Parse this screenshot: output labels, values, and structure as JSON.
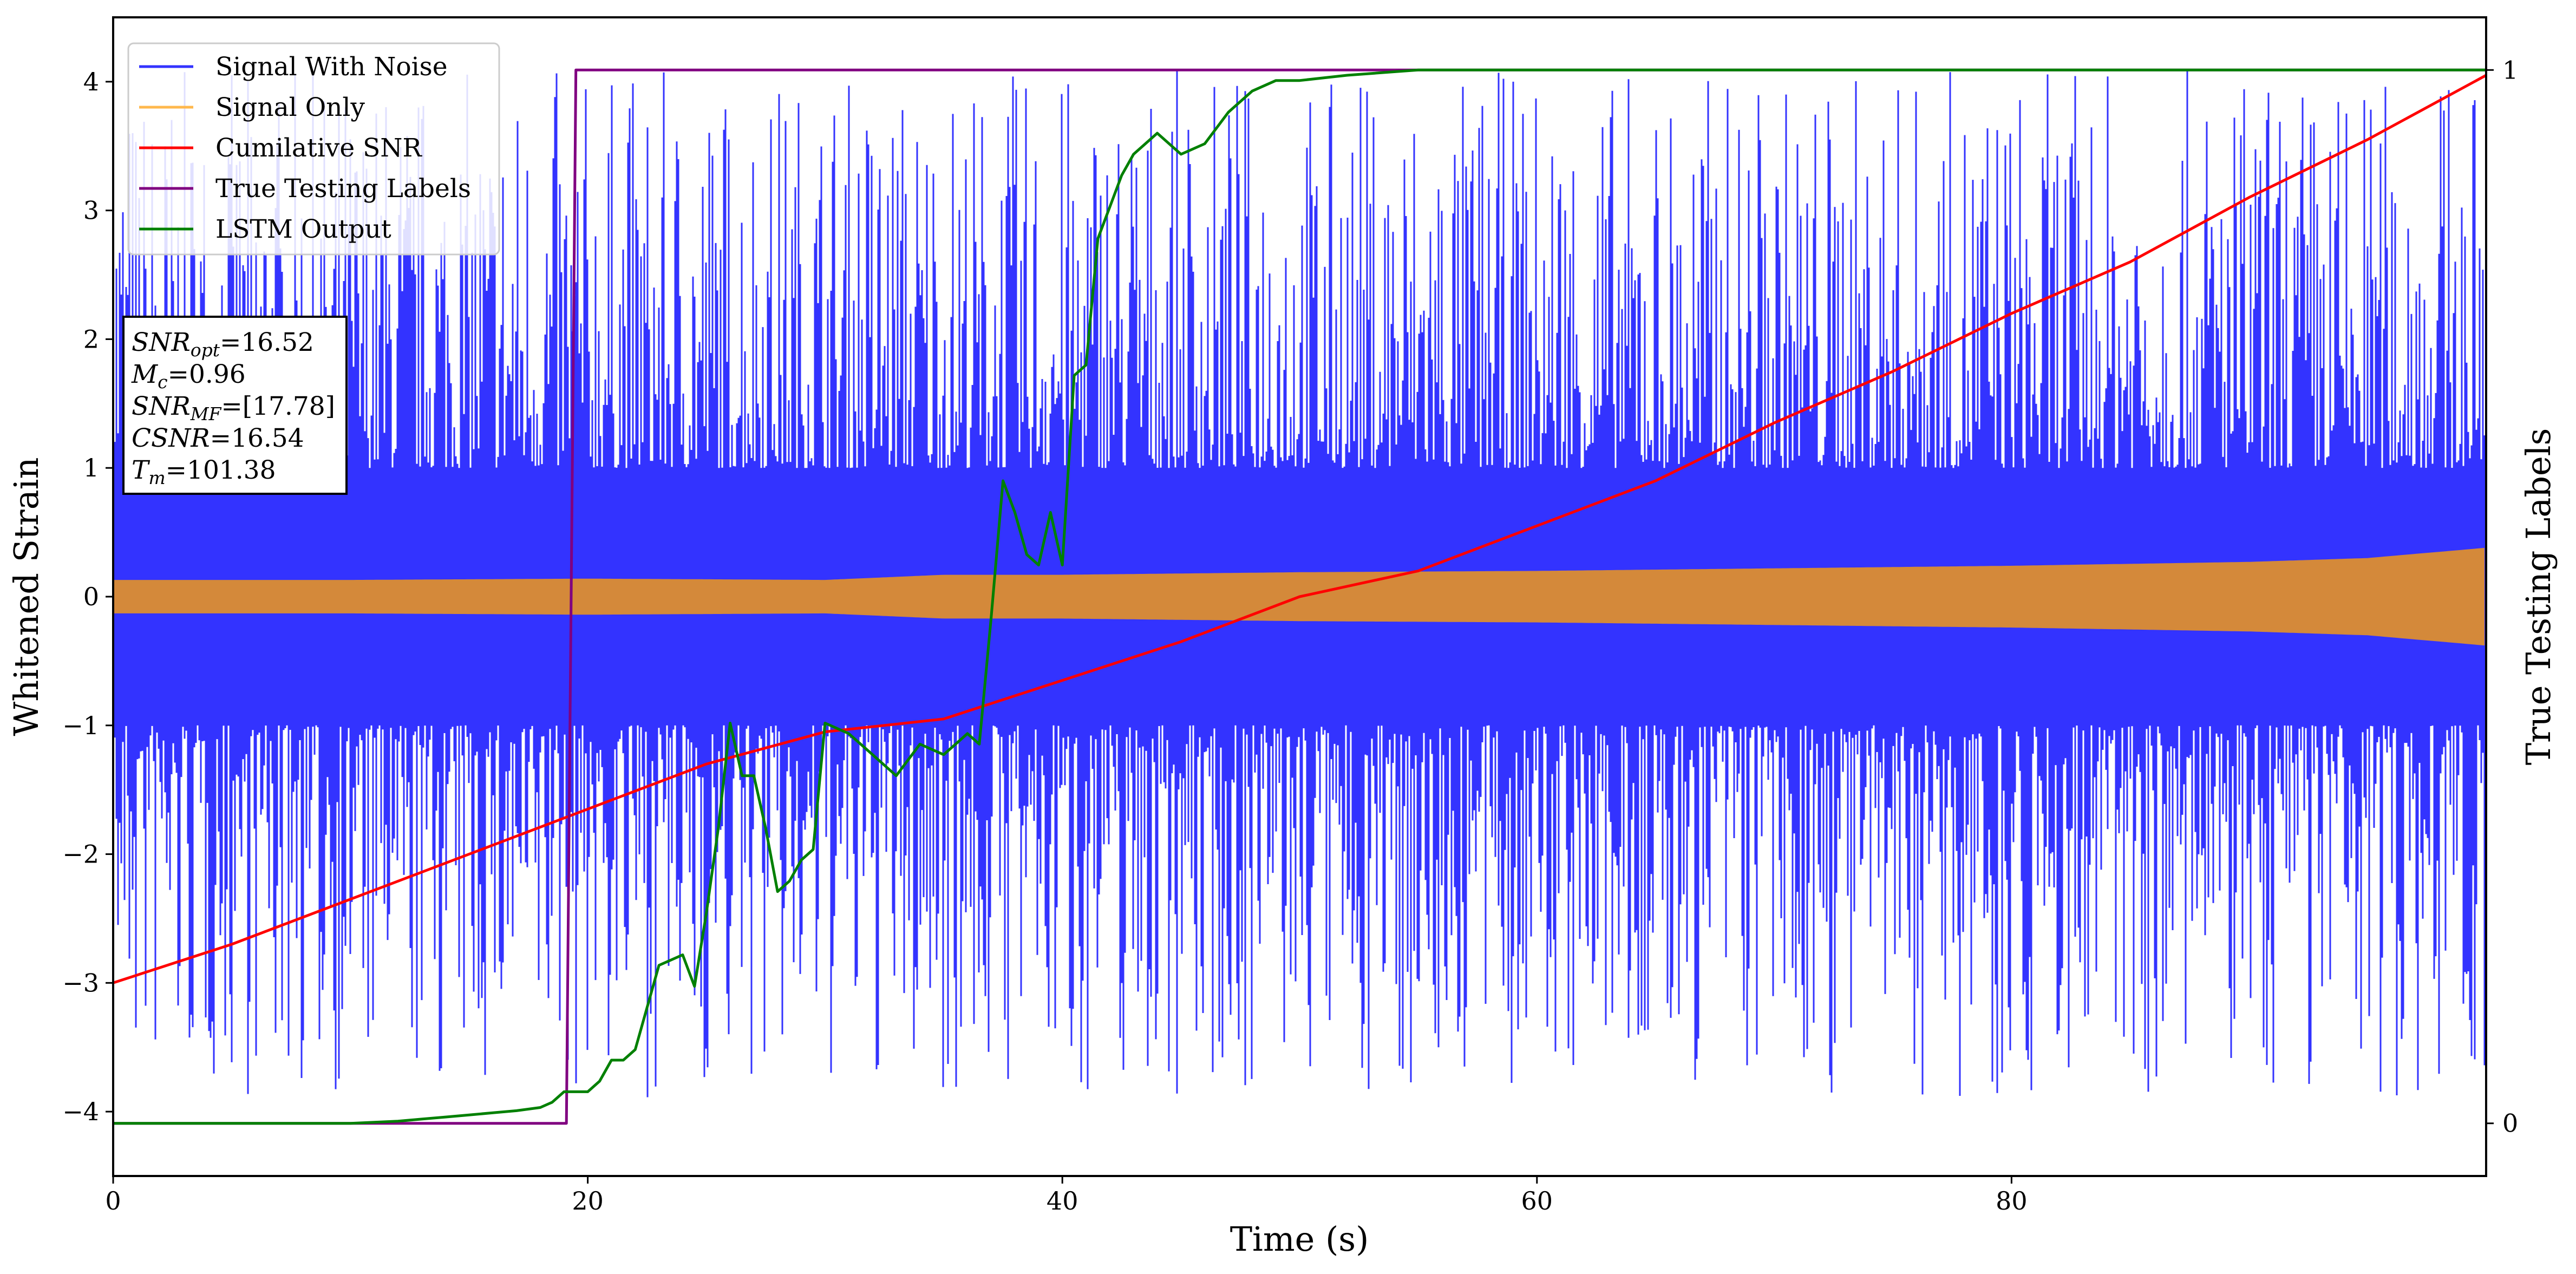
{
  "chart_data": {
    "type": "line",
    "title": "",
    "xlabel": "Time (s)",
    "ylabel": "Whitened Strain",
    "y2label": "True Testing Labels",
    "xlim": [
      0,
      100
    ],
    "ylim": [
      -4.5,
      4.5
    ],
    "y2lim": [
      -0.05,
      1.05
    ],
    "x_ticks": [
      0,
      20,
      40,
      60,
      80
    ],
    "x_tick_labels": [
      "0",
      "20",
      "40",
      "60",
      "80"
    ],
    "y_ticks": [
      4,
      3,
      2,
      1,
      0,
      -1,
      -2,
      -3,
      -4
    ],
    "y_tick_labels": [
      "4",
      "3",
      "2",
      "1",
      "0",
      "−1",
      "−2",
      "−3",
      "−4"
    ],
    "y2_ticks": [
      1,
      0
    ],
    "y2_tick_labels": [
      "1",
      "0"
    ],
    "grid": false,
    "legend_position": "top-left",
    "legend": [
      {
        "name": "Signal With Noise",
        "color": "#3333ff"
      },
      {
        "name": "Signal Only",
        "color": "#ffb84d"
      },
      {
        "name": "Cumilative SNR",
        "color": "#ff0000"
      },
      {
        "name": "True Testing Labels",
        "color": "#800080"
      },
      {
        "name": "LSTM Output",
        "color": "#008000"
      }
    ],
    "annotation": {
      "lines": [
        {
          "sym": "SNR",
          "sub": "opt",
          "val": "=16.52"
        },
        {
          "sym": "M",
          "sub": "c",
          "val": "=0.96"
        },
        {
          "sym": "SNR",
          "sub": "MF",
          "val": "=[17.78]"
        },
        {
          "sym": "CSNR",
          "sub": "",
          "val": "=16.54"
        },
        {
          "sym": "T",
          "sub": "m",
          "val": "=101.38"
        }
      ]
    },
    "series": [
      {
        "name": "Signal With Noise",
        "color": "#3333ff",
        "kind": "noise-band",
        "x_range": [
          0,
          100
        ],
        "core_band": [
          -0.95,
          0.95
        ],
        "envelope_max": 4.1,
        "envelope_min": -3.9
      },
      {
        "name": "Signal Only",
        "color": "#d4893a",
        "kind": "oscillating-band",
        "x": [
          0,
          10,
          20,
          30,
          35,
          40,
          50,
          60,
          70,
          80,
          90,
          95,
          100
        ],
        "amplitude": [
          0.13,
          0.13,
          0.14,
          0.13,
          0.17,
          0.17,
          0.19,
          0.2,
          0.22,
          0.24,
          0.27,
          0.3,
          0.38
        ]
      },
      {
        "name": "Cumilative SNR",
        "color": "#ff0000",
        "axis": "left",
        "x": [
          0,
          5,
          10,
          15,
          20,
          25,
          30,
          35,
          40,
          45,
          50,
          55,
          60,
          65,
          70,
          75,
          80,
          85,
          90,
          95,
          100
        ],
        "y": [
          -3.0,
          -2.7,
          -2.35,
          -2.0,
          -1.65,
          -1.3,
          -1.05,
          -0.95,
          -0.65,
          -0.35,
          0.0,
          0.2,
          0.55,
          0.9,
          1.35,
          1.75,
          2.2,
          2.6,
          3.1,
          3.55,
          4.05
        ]
      },
      {
        "name": "True Testing Labels",
        "color": "#800080",
        "axis": "right",
        "x": [
          0,
          19.1,
          19.5,
          100
        ],
        "y": [
          0,
          0,
          1,
          1
        ]
      },
      {
        "name": "LSTM Output",
        "color": "#008000",
        "axis": "right",
        "x": [
          0,
          10,
          12,
          13,
          14,
          15,
          16,
          17,
          18,
          18.5,
          19,
          20,
          20.5,
          21,
          21.5,
          22,
          23,
          24,
          24.5,
          25,
          25.5,
          26,
          26.5,
          27,
          27.5,
          28,
          28.5,
          29,
          29.5,
          30,
          31,
          32,
          33,
          34,
          35,
          35.5,
          36,
          36.5,
          37,
          37.5,
          38,
          38.5,
          39,
          39.5,
          40,
          40.5,
          41,
          41.5,
          42,
          42.5,
          43,
          44,
          45,
          46,
          47,
          48,
          49,
          50,
          52,
          55,
          60,
          100
        ],
        "y": [
          0.0,
          0.0,
          0.002,
          0.004,
          0.006,
          0.008,
          0.01,
          0.012,
          0.015,
          0.02,
          0.03,
          0.03,
          0.04,
          0.06,
          0.06,
          0.07,
          0.15,
          0.16,
          0.13,
          0.2,
          0.28,
          0.38,
          0.33,
          0.33,
          0.28,
          0.22,
          0.23,
          0.25,
          0.26,
          0.38,
          0.37,
          0.35,
          0.33,
          0.36,
          0.35,
          0.36,
          0.37,
          0.36,
          0.48,
          0.61,
          0.58,
          0.54,
          0.53,
          0.58,
          0.53,
          0.71,
          0.72,
          0.84,
          0.87,
          0.9,
          0.92,
          0.94,
          0.92,
          0.93,
          0.96,
          0.98,
          0.99,
          0.99,
          0.995,
          1.0,
          1.0,
          1.0
        ]
      }
    ]
  }
}
